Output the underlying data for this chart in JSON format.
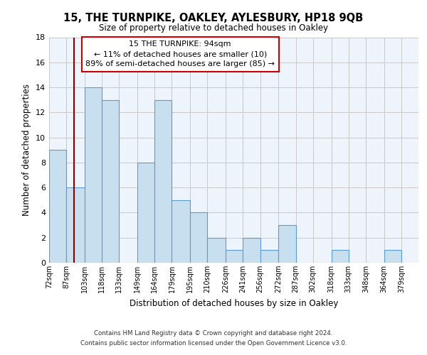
{
  "title": "15, THE TURNPIKE, OAKLEY, AYLESBURY, HP18 9QB",
  "subtitle": "Size of property relative to detached houses in Oakley",
  "xlabel": "Distribution of detached houses by size in Oakley",
  "ylabel": "Number of detached properties",
  "bin_labels": [
    "72sqm",
    "87sqm",
    "103sqm",
    "118sqm",
    "133sqm",
    "149sqm",
    "164sqm",
    "179sqm",
    "195sqm",
    "210sqm",
    "226sqm",
    "241sqm",
    "256sqm",
    "272sqm",
    "287sqm",
    "302sqm",
    "318sqm",
    "333sqm",
    "348sqm",
    "364sqm",
    "379sqm"
  ],
  "bin_edges": [
    72,
    87,
    103,
    118,
    133,
    149,
    164,
    179,
    195,
    210,
    226,
    241,
    256,
    272,
    287,
    302,
    318,
    333,
    348,
    364,
    379
  ],
  "bar_heights": [
    9,
    6,
    14,
    13,
    0,
    8,
    13,
    5,
    4,
    2,
    1,
    2,
    1,
    3,
    0,
    0,
    1,
    0,
    0,
    1
  ],
  "bar_color": "#c8dff0",
  "bar_edge_color": "#5b9bd5",
  "grid_color": "#c8c8c8",
  "vline_x": 94,
  "vline_color": "#8b0000",
  "annotation_text": "15 THE TURNPIKE: 94sqm\n← 11% of detached houses are smaller (10)\n89% of semi-detached houses are larger (85) →",
  "annotation_box_edge_color": "#cc0000",
  "ylim": [
    0,
    18
  ],
  "yticks": [
    0,
    2,
    4,
    6,
    8,
    10,
    12,
    14,
    16,
    18
  ],
  "footer_line1": "Contains HM Land Registry data © Crown copyright and database right 2024.",
  "footer_line2": "Contains public sector information licensed under the Open Government Licence v3.0.",
  "bg_color": "#eef4fb"
}
